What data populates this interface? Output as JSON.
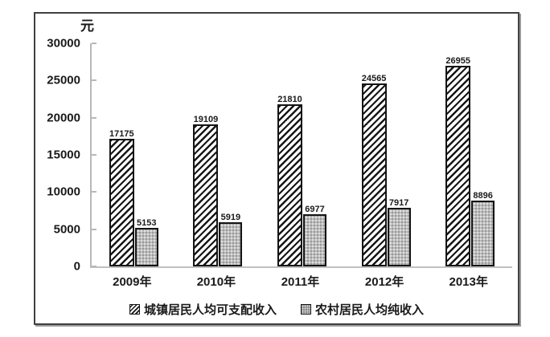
{
  "chart_data": {
    "type": "bar",
    "title": "",
    "unit_label": "元",
    "categories": [
      "2009年",
      "2010年",
      "2011年",
      "2012年",
      "2013年"
    ],
    "series": [
      {
        "name": "城镇居民人均可支配收入",
        "values": [
          17175,
          19109,
          21810,
          24565,
          26955
        ],
        "style": "black-diagonal-hatch-on-white"
      },
      {
        "name": "农村居民人均纯收入",
        "values": [
          5153,
          5919,
          6977,
          7917,
          8896
        ],
        "style": "gray-dot-texture",
        "fill": "#bcbcbc"
      }
    ],
    "ylim": [
      0,
      30000
    ],
    "y_tick_step": 5000,
    "y_tick_labels": [
      "30000",
      "25000",
      "20000",
      "15000",
      "10000",
      "5000",
      "0"
    ],
    "xlabel": "",
    "ylabel": "元",
    "grid": false,
    "value_labels_shown": true,
    "legend_position": "bottom-inside-frame",
    "colors": {
      "bar_border": "#141414",
      "rural_fill": "#bcbcbc",
      "axis_line": "#b8b8b8",
      "text": "#1a1a1a",
      "frame_border": "#404040",
      "background": "#ffffff"
    }
  }
}
